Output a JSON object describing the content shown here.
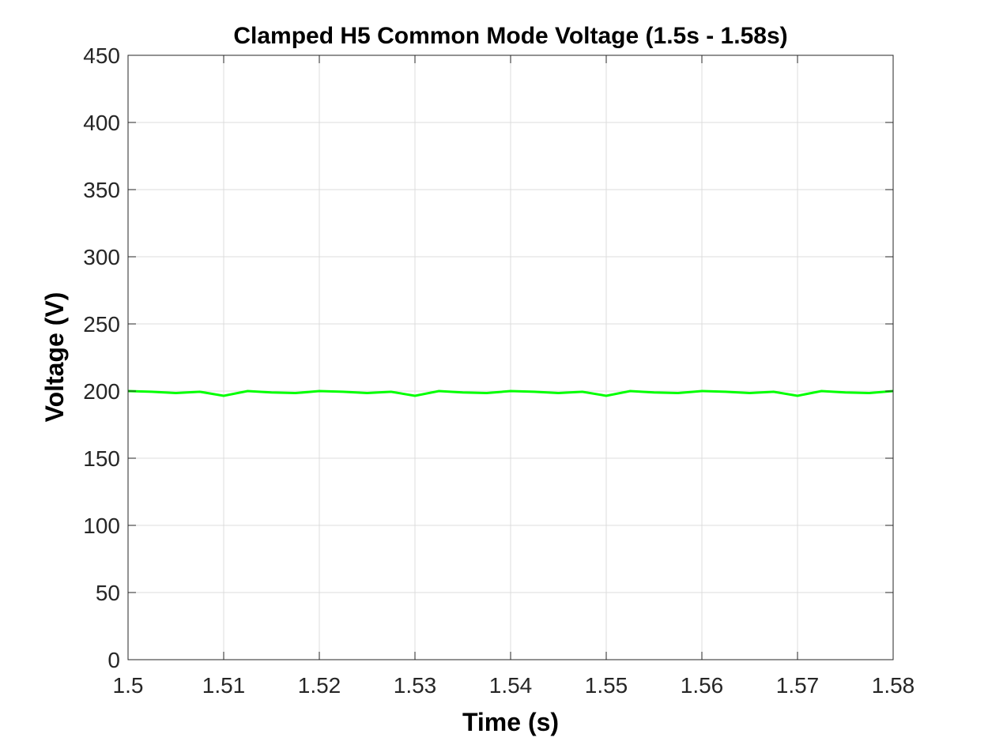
{
  "chart_data": {
    "type": "line",
    "title": "Clamped H5 Common Mode Voltage (1.5s - 1.58s)",
    "xlabel": "Time (s)",
    "ylabel": "Voltage (V)",
    "x": [
      1.5,
      1.5025,
      1.505,
      1.5075,
      1.51,
      1.5125,
      1.515,
      1.5175,
      1.52,
      1.5225,
      1.525,
      1.5275,
      1.53,
      1.5325,
      1.535,
      1.5375,
      1.54,
      1.5425,
      1.545,
      1.5475,
      1.55,
      1.5525,
      1.555,
      1.5575,
      1.56,
      1.5625,
      1.565,
      1.5675,
      1.57,
      1.5725,
      1.575,
      1.5775,
      1.58
    ],
    "series": [
      {
        "color": "#00ff00",
        "values": [
          200,
          199.5,
          198.5,
          199.5,
          196.5,
          200,
          199,
          198.5,
          200,
          199.5,
          198.5,
          199.5,
          196.5,
          200,
          199,
          198.5,
          200,
          199.5,
          198.5,
          199.5,
          196.5,
          200,
          199,
          198.5,
          200,
          199.5,
          198.5,
          199.5,
          196.5,
          200,
          199,
          198.5,
          200
        ]
      }
    ],
    "xlim": [
      1.5,
      1.58
    ],
    "xticks": [
      1.5,
      1.51,
      1.52,
      1.53,
      1.54,
      1.55,
      1.56,
      1.57,
      1.58
    ],
    "ylim": [
      0,
      450
    ],
    "yticks": [
      0,
      50,
      100,
      150,
      200,
      250,
      300,
      350,
      400,
      450
    ],
    "grid": true
  }
}
